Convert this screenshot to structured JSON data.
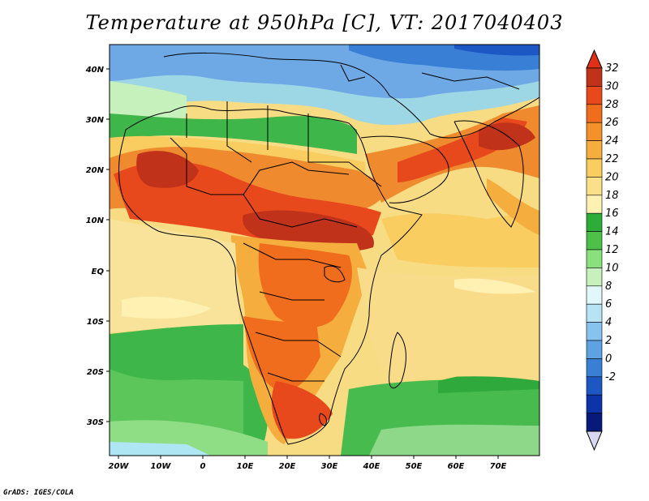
{
  "title": "Temperature at 950hPa [C], VT: 2017040403",
  "footer": "GrADS: IGES/COLA",
  "axes": {
    "lat_labels": [
      "40N",
      "30N",
      "20N",
      "10N",
      "EQ",
      "10S",
      "20S",
      "30S"
    ],
    "lon_labels": [
      "20W",
      "10W",
      "0",
      "10E",
      "20E",
      "30E",
      "40E",
      "50E",
      "60E",
      "70E"
    ]
  },
  "colorbar": {
    "labels": [
      "32",
      "30",
      "28",
      "26",
      "24",
      "22",
      "20",
      "18",
      "16",
      "14",
      "12",
      "10",
      "8",
      "6",
      "4",
      "2",
      "0",
      "-2"
    ],
    "colors": [
      "#c0331a",
      "#e8491c",
      "#f06d1e",
      "#f3912a",
      "#f5ad3e",
      "#f9cd5f",
      "#fbe08a",
      "#fff1b2",
      "#2eac3a",
      "#4dc04a",
      "#8be07e",
      "#c6f1bc",
      "#e2f7f9",
      "#b6e4f5",
      "#86c3ef",
      "#5ea2e4",
      "#3a7fd6",
      "#1d57c4",
      "#0d33a8",
      "#071a7a"
    ],
    "top_arrow": "#e03018",
    "bottom_arrow": "#d8d8f0"
  },
  "legend_colors": {
    "ocean_south": "#f7de86",
    "ocean_north": "#9dd6e4",
    "land_hot": "#f08a2e",
    "mediterranean": "#6aa7e8"
  }
}
